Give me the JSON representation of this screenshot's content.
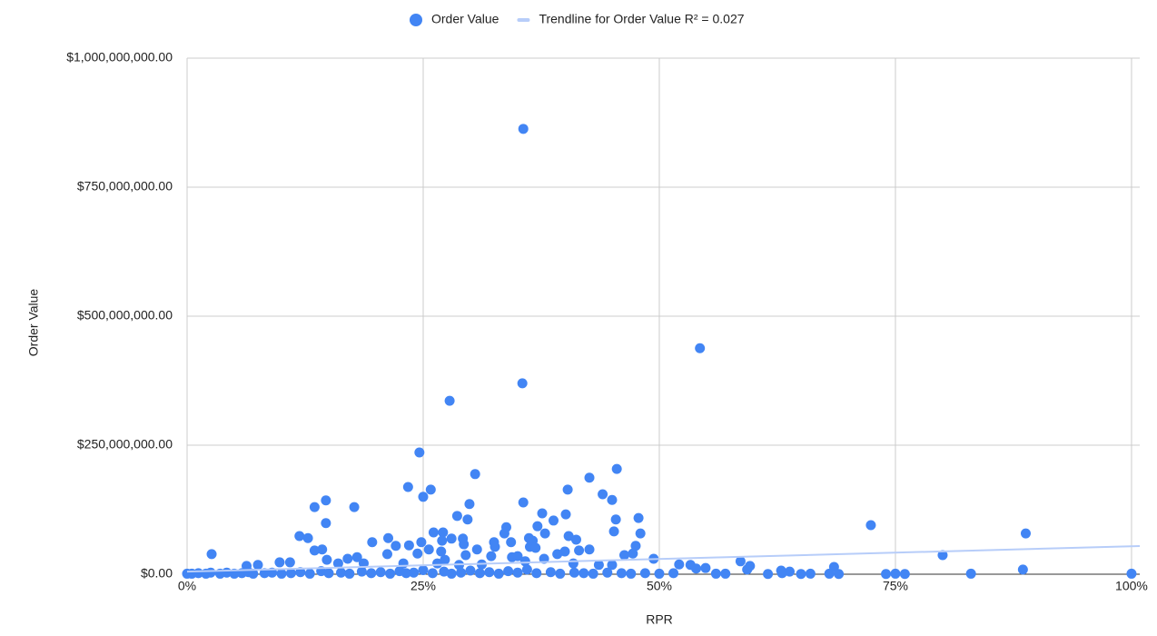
{
  "chart_data": {
    "type": "scatter",
    "x_label": "RPR",
    "y_label": "Order Value",
    "xlim": [
      0,
      100.87
    ],
    "ylim": [
      0,
      1000000000
    ],
    "xticks": [
      {
        "value": 0,
        "label": "0%"
      },
      {
        "value": 25,
        "label": "25%"
      },
      {
        "value": 50,
        "label": "50%"
      },
      {
        "value": 75,
        "label": "75%"
      },
      {
        "value": 100,
        "label": "100%"
      }
    ],
    "yticks": [
      {
        "value": 0,
        "label": "$0.00"
      },
      {
        "value": 250000000,
        "label": "$250,000,000.00"
      },
      {
        "value": 500000000,
        "label": "$500,000,000.00"
      },
      {
        "value": 750000000,
        "label": "$750,000,000.00"
      },
      {
        "value": 1000000000,
        "label": "$1,000,000,000.00"
      }
    ],
    "grid": true,
    "legend": "top",
    "series": [
      {
        "name": "Order Value",
        "color": "#4285f4",
        "x": [
          35.6,
          54.3,
          35.5,
          27.8,
          24.6,
          30.5,
          45.5,
          42.6,
          40.3,
          25.8,
          23.4,
          25.0,
          44.0,
          45.0,
          35.6,
          29.9,
          14.7,
          13.5,
          17.7,
          37.6,
          40.1,
          28.6,
          47.8,
          29.7,
          38.8,
          45.4,
          14.7,
          72.4,
          37.1,
          33.8,
          26.1,
          27.1,
          45.2,
          48.0,
          88.8,
          37.9,
          33.6,
          11.9,
          12.8,
          21.3,
          28.0,
          29.2,
          36.2,
          40.4,
          41.2,
          36.6,
          27.0,
          19.6,
          24.8,
          32.5,
          34.3,
          23.5,
          22.1,
          29.3,
          47.5,
          32.6,
          36.3,
          36.9,
          14.3,
          13.5,
          30.7,
          42.6,
          41.5,
          26.9,
          40.0,
          25.6,
          24.4,
          80.0,
          39.2,
          47.2,
          2.6,
          46.3,
          21.2,
          32.2,
          29.5,
          34.4,
          35.0,
          49.4,
          18.0,
          17.0,
          14.8,
          27.3,
          37.8,
          58.6,
          35.8,
          10.9,
          9.8,
          16.0,
          18.7,
          22.9,
          26.5,
          43.6,
          52.1,
          53.3,
          59.6,
          7.5,
          6.3,
          31.2,
          28.8,
          40.9,
          45.0,
          68.5,
          54.9,
          88.5,
          62.9,
          63.8,
          59.3,
          53.9,
          0,
          0.5,
          1.2,
          2,
          2.5,
          3.5,
          4.2,
          5,
          5.8,
          6.5,
          7,
          8.2,
          9,
          10,
          11,
          12,
          13,
          14.2,
          15,
          16.3,
          17.2,
          18.5,
          19.5,
          20.5,
          21.5,
          22.5,
          23.2,
          24,
          25,
          26,
          27.2,
          28,
          29,
          30,
          31,
          32,
          33,
          34,
          35,
          36,
          37,
          38.5,
          39.5,
          41,
          42,
          43,
          44.5,
          46,
          47,
          48.5,
          50,
          51.5,
          56,
          63,
          66,
          74,
          75,
          76,
          83,
          100,
          68,
          69,
          65,
          61.5,
          57
        ],
        "values": [
          863000000,
          438000000,
          370000000,
          336000000,
          236000000,
          194000000,
          204000000,
          187000000,
          164000000,
          164000000,
          169000000,
          150000000,
          155000000,
          144000000,
          139000000,
          136000000,
          143000000,
          130000000,
          130000000,
          118000000,
          116000000,
          113000000,
          109000000,
          106000000,
          104000000,
          106000000,
          99000000,
          95000000,
          93000000,
          91000000,
          81000000,
          81000000,
          83000000,
          79000000,
          79000000,
          79000000,
          79000000,
          74000000,
          70000000,
          70000000,
          69000000,
          69000000,
          70000000,
          74000000,
          67000000,
          65000000,
          65000000,
          62000000,
          62000000,
          62000000,
          62000000,
          56000000,
          55000000,
          58000000,
          55000000,
          53000000,
          53000000,
          51000000,
          48000000,
          46000000,
          48000000,
          48000000,
          46000000,
          44000000,
          44000000,
          48000000,
          40000000,
          37000000,
          39000000,
          40000000,
          39000000,
          37000000,
          39000000,
          35000000,
          37000000,
          33000000,
          35000000,
          30000000,
          33000000,
          30000000,
          28000000,
          28000000,
          30000000,
          25000000,
          25000000,
          23000000,
          23000000,
          21000000,
          21000000,
          21000000,
          21000000,
          18000000,
          19000000,
          18000000,
          16000000,
          18000000,
          16000000,
          19000000,
          18000000,
          21000000,
          18000000,
          14000000,
          12000000,
          9000000,
          7000000,
          5000000,
          9000000,
          11000000,
          1000000,
          1000000,
          2000000,
          1000000,
          3000000,
          1000000,
          3000000,
          1000000,
          2000000,
          4000000,
          1000000,
          2000000,
          3000000,
          1000000,
          2000000,
          4000000,
          1000000,
          6000000,
          2000000,
          3000000,
          1000000,
          5000000,
          2000000,
          4000000,
          1000000,
          6000000,
          2000000,
          3000000,
          8000000,
          2000000,
          5000000,
          1000000,
          3000000,
          7000000,
          2000000,
          4000000,
          1000000,
          6000000,
          3000000,
          9000000,
          2000000,
          4000000,
          1000000,
          3000000,
          2000000,
          1000000,
          3000000,
          2000000,
          1000000,
          2000000,
          1000000,
          2000000,
          1000000,
          2000000,
          1000000,
          500000,
          1000000,
          500000,
          1000000,
          1000000,
          1000000,
          500000,
          500000,
          500000,
          1000000
        ]
      },
      {
        "name": "Trendline for Order Value R² = 0.027",
        "color": "#b7cdf9",
        "x": [
          0,
          100.87
        ],
        "values": [
          5000000,
          54500000
        ]
      }
    ]
  }
}
